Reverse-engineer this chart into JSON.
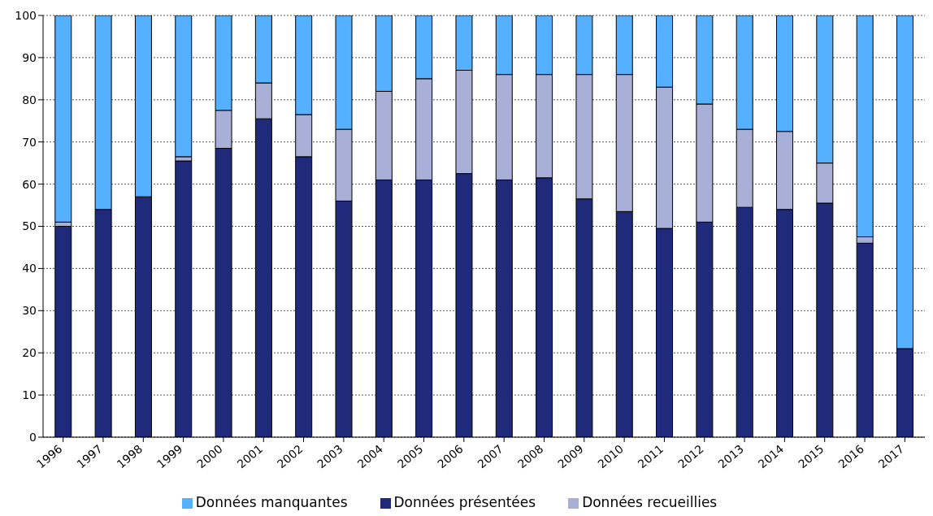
{
  "chart_data": {
    "type": "bar",
    "stacked": true,
    "categories": [
      "1996",
      "1997",
      "1998",
      "1999",
      "2000",
      "2001",
      "2002",
      "2003",
      "2004",
      "2005",
      "2006",
      "2007",
      "2008",
      "2009",
      "2010",
      "2011",
      "2012",
      "2013",
      "2014",
      "2015",
      "2016",
      "2017"
    ],
    "series": [
      {
        "name": "Données présentées",
        "color": "#1f2a7a",
        "values": [
          50,
          54,
          57,
          65.5,
          68.5,
          75.5,
          66.5,
          56,
          61,
          61,
          62.5,
          61,
          61.5,
          56.5,
          53.5,
          49.5,
          51,
          54.5,
          54,
          55.5,
          46,
          21
        ]
      },
      {
        "name": "Données recueillies",
        "color": "#a9b0d8",
        "values": [
          1,
          0,
          0,
          1,
          9,
          8.5,
          10,
          17,
          21,
          24,
          24.5,
          25,
          24.5,
          29.5,
          32.5,
          33.5,
          28,
          18.5,
          18.5,
          9.5,
          1.5,
          0
        ]
      },
      {
        "name": "Données manquantes",
        "color": "#55b0ff",
        "values": [
          49,
          46,
          43,
          33.5,
          22.5,
          16,
          23.5,
          27,
          18,
          15,
          13,
          14,
          14,
          14,
          14,
          17,
          21,
          27,
          27.5,
          35,
          52.5,
          79
        ]
      }
    ],
    "ylim": [
      0,
      100
    ],
    "yticks": [
      0,
      10,
      20,
      30,
      40,
      50,
      60,
      70,
      80,
      90,
      100
    ],
    "grid": "y",
    "legend": "bottom"
  }
}
